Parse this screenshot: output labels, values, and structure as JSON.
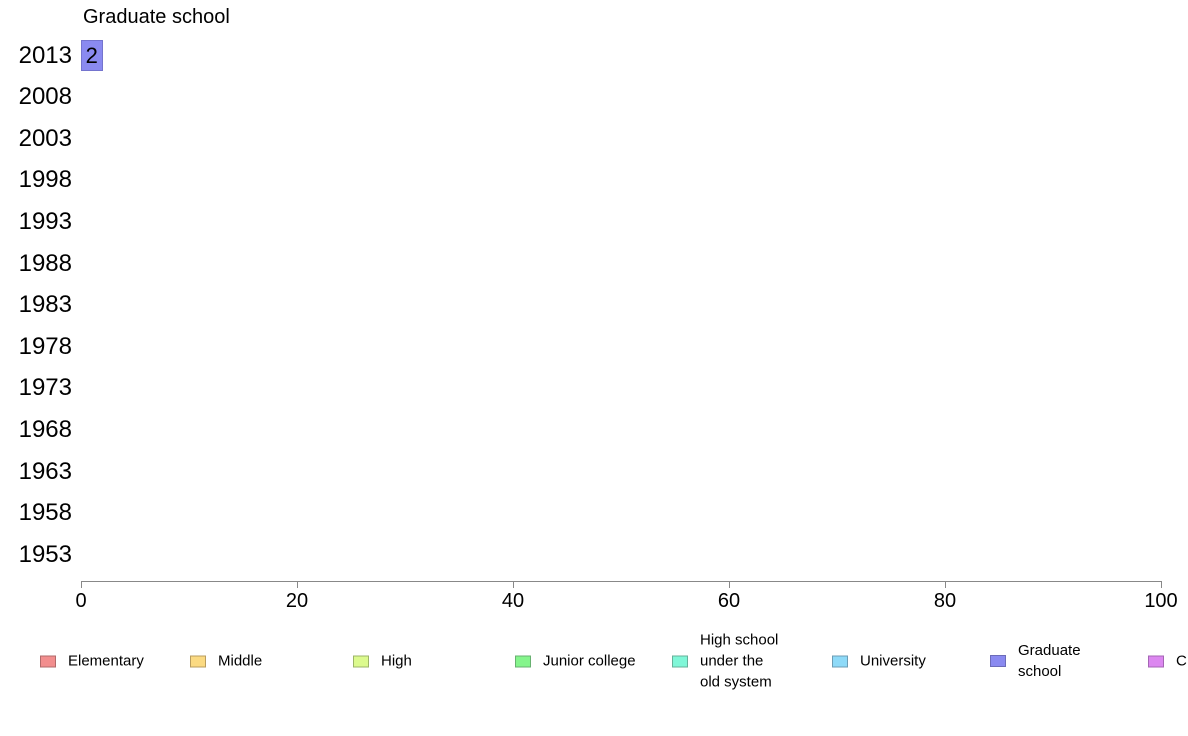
{
  "chart_data": {
    "type": "bar",
    "orientation": "horizontal",
    "title": "Graduate school",
    "categories": [
      "2013",
      "2008",
      "2003",
      "1998",
      "1993",
      "1988",
      "1983",
      "1978",
      "1973",
      "1968",
      "1963",
      "1958",
      "1953"
    ],
    "values": [
      2,
      null,
      null,
      null,
      null,
      null,
      null,
      null,
      null,
      null,
      null,
      null,
      null
    ],
    "bar_labels": [
      "2",
      "",
      "",
      "",
      "",
      "",
      "",
      "",
      "",
      "",
      "",
      "",
      ""
    ],
    "xlabel": "",
    "ylabel": "",
    "xlim": [
      0,
      100
    ],
    "x_ticks": [
      "0",
      "20",
      "40",
      "60",
      "80",
      "100"
    ],
    "grid": false,
    "legend_position": "bottom",
    "bar_fill": "#8A8AF0",
    "bar_border": "#7474CE",
    "axis_color": "#888888",
    "legend": [
      {
        "label": "Elementary",
        "lines": [
          "Elementary"
        ],
        "fill": "#F28E8E",
        "border": "#B06A6A"
      },
      {
        "label": "Middle",
        "lines": [
          "Middle"
        ],
        "fill": "#FBDA82",
        "border": "#B89C5E"
      },
      {
        "label": "High",
        "lines": [
          "High"
        ],
        "fill": "#DCFA8E",
        "border": "#9CB468"
      },
      {
        "label": "Junior college",
        "lines": [
          "Junior college"
        ],
        "fill": "#85F58C",
        "border": "#68B070"
      },
      {
        "label": "High school under the old system",
        "lines": [
          "High school",
          "under the",
          "old system"
        ],
        "fill": "#80F7D8",
        "border": "#66B09A"
      },
      {
        "label": "University",
        "lines": [
          "University"
        ],
        "fill": "#8EDAF8",
        "border": "#6C9CB4"
      },
      {
        "label": "Graduate school",
        "lines": [
          "Graduate",
          "school"
        ],
        "fill": "#8A8AF0",
        "border": "#6C6CB8"
      },
      {
        "label": "C",
        "lines": [
          "C"
        ],
        "fill": "#DC87F0",
        "border": "#A466B4"
      }
    ]
  }
}
